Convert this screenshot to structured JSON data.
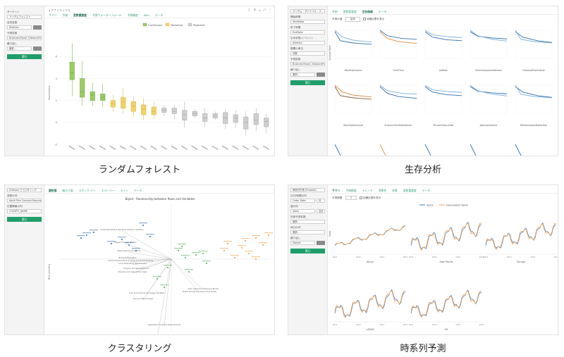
{
  "random_forest": {
    "sidebar": {
      "target_label": "ターゲット",
      "target_value": "ランダムフォレスト",
      "target_var_label": "目的変数",
      "target_var_value": "Attrition",
      "predictor_label": "予測変数",
      "predictor_value": "BusinessTravel, DistanceFr...",
      "subtract_label": "繰り返し",
      "subtract_value": "選択...",
      "run_label": "実行"
    },
    "crumb": "◂ アナリティクス",
    "tabs": [
      "サマリ",
      "予測",
      "変数重要度",
      "予測ウォーターフォール",
      "予測精度",
      "Wiki",
      "データ"
    ],
    "legend": [
      "Confirmed",
      "Tentative",
      "Rejected"
    ],
    "colors": {
      "confirmed": "#9ccc65",
      "tentative": "#f0d36a",
      "rejected": "#cfcfcf"
    },
    "chart_data": {
      "type": "box",
      "ylabel": "Importance",
      "yticks": [
        6,
        4,
        2,
        0,
        -2
      ],
      "boxes": [
        {
          "status": "Confirmed",
          "whisker": [
            2.4,
            7.2
          ],
          "q1": 3.9,
          "median": 4.5,
          "q3": 5.5
        },
        {
          "status": "Confirmed",
          "whisker": [
            1.5,
            5.6
          ],
          "q1": 2.3,
          "median": 2.8,
          "q3": 4.0
        },
        {
          "status": "Confirmed",
          "whisker": [
            1.5,
            3.6
          ],
          "q1": 2.0,
          "median": 2.5,
          "q3": 2.8
        },
        {
          "status": "Confirmed",
          "whisker": [
            1.4,
            3.5
          ],
          "q1": 2.0,
          "median": 2.3,
          "q3": 2.6
        },
        {
          "status": "Tentative",
          "whisker": [
            1.0,
            2.5
          ],
          "q1": 1.4,
          "median": 1.7,
          "q3": 2.0
        },
        {
          "status": "Tentative",
          "whisker": [
            0.8,
            3.1
          ],
          "q1": 1.3,
          "median": 1.9,
          "q3": 2.3
        },
        {
          "status": "Tentative",
          "whisker": [
            0.5,
            2.4
          ],
          "q1": 1.0,
          "median": 1.5,
          "q3": 1.9
        },
        {
          "status": "Tentative",
          "whisker": [
            0.2,
            2.2
          ],
          "q1": 0.7,
          "median": 1.2,
          "q3": 1.6
        },
        {
          "status": "Tentative",
          "whisker": [
            0.3,
            1.9
          ],
          "q1": 0.7,
          "median": 1.0,
          "q3": 1.4
        },
        {
          "status": "Rejected",
          "whisker": [
            0.6,
            1.6
          ],
          "q1": 0.9,
          "median": 1.1,
          "q3": 1.3
        },
        {
          "status": "Rejected",
          "whisker": [
            0.3,
            1.6
          ],
          "q1": 0.8,
          "median": 1.0,
          "q3": 1.3
        },
        {
          "status": "Rejected",
          "whisker": [
            -0.5,
            1.9
          ],
          "q1": 0.2,
          "median": 0.7,
          "q3": 1.1
        },
        {
          "status": "Rejected",
          "whisker": [
            0.4,
            1.2
          ],
          "q1": 0.6,
          "median": 0.8,
          "q3": 1.0
        },
        {
          "status": "Rejected",
          "whisker": [
            -0.4,
            1.3
          ],
          "q1": 0.1,
          "median": 0.4,
          "q3": 0.8
        },
        {
          "status": "Rejected",
          "whisker": [
            0.2,
            1.0
          ],
          "q1": 0.4,
          "median": 0.6,
          "q3": 0.8
        },
        {
          "status": "Rejected",
          "whisker": [
            -0.6,
            1.2
          ],
          "q1": -0.1,
          "median": 0.4,
          "q3": 0.9
        },
        {
          "status": "Rejected",
          "whisker": [
            -0.5,
            1.1
          ],
          "q1": 0.0,
          "median": 0.4,
          "q3": 0.7
        },
        {
          "status": "Rejected",
          "whisker": [
            -1.2,
            1.0
          ],
          "q1": -0.6,
          "median": 0.0,
          "q3": 0.5
        },
        {
          "status": "Rejected",
          "whisker": [
            -0.8,
            1.3
          ],
          "q1": -0.2,
          "median": 0.2,
          "q3": 0.8
        },
        {
          "status": "Rejected",
          "whisker": [
            -1.0,
            0.8
          ],
          "q1": -0.4,
          "median": 0.1,
          "q3": 0.4
        }
      ]
    }
  },
  "survival": {
    "sidebar": {
      "target_label": "ランダム・サバイバル・フ...",
      "time_label": "開始時間",
      "time_value": "StartDate",
      "end_label": "終了時間",
      "end_value": "EndDate",
      "status_label": "生存状態(イベント)",
      "status_value": "Attrition",
      "unit_label": "期間の単位",
      "unit_value": "月数",
      "predictor_label": "予測変数",
      "predictor_value": "BusinessTravel, DistanceFr...",
      "subtract_label": "繰り返し",
      "subtract_value": "選択...",
      "run_label": "実行"
    },
    "tabs": [
      "予測",
      "変数重要度",
      "生存曲線",
      "データ"
    ],
    "filter_label": "予測の値",
    "filter_value": "全体",
    "ci_label": "信頼区間を表示",
    "ylabel": "Survival Rate",
    "small_multiples": [
      "MonthlyIncome",
      "OverTime",
      "JobRole",
      "NumCompaniesWorked",
      "DistanceFromHome",
      "StockOptionLevel",
      "EnvironmentSatisfaction",
      "PercentSalaryHike",
      "JobInvolvement",
      "RelationshipSatisfaction"
    ]
  },
  "clustering": {
    "sidebar": {
      "target_label": "K-Means クラスタリング",
      "vars_label": "変数の列",
      "vars_value": "Adult Film Conduct Require...",
      "group_label": "位置情報の列",
      "group_value": "COUNTY_NAME",
      "run_label": "実行"
    },
    "tabs": [
      "要約値",
      "箱ひげ図",
      "スタック バー",
      "エラーバー",
      "ライン",
      "データ"
    ],
    "title": "Biplot - Relationship between Rows and Variables",
    "ylabel": "PC2 (15.6%)",
    "colors": {
      "cluster1": "#2b6cb0",
      "cluster2": "#4caf50",
      "cluster3": "#f39c3d"
    },
    "labels": [
      "Corporate Political Spending Advisory Question",
      "Repeal of Death Penalty",
      "State Preschool Programs",
      "Bilingual Education",
      "Local Taxes Bond Requirement",
      "Property Tax Reassessment",
      "K-12 and Community College Facilities",
      "Carryout Bag Charges",
      "Death Penalty Procedure Time Limits",
      "Voter Approval of Revenue Bonds",
      "Legislative Procedure Requirements",
      "Adult Film Condom Requirements",
      "Firearms and Ammunition Sales",
      "Criminal Sentences & Juvenile Crime Proceedings"
    ]
  },
  "timeseries": {
    "sidebar": {
      "target_label": "時系列予測 (Prophet)",
      "date_label": "日付/時間の列",
      "date_value": "Order Date",
      "date_unit": "月",
      "value_label": "値の列",
      "value_value": "Sales",
      "value_agg": "合計",
      "extra_label": "外部予測変数",
      "extra_value": "選択...",
      "holiday_label": "休日の列",
      "holiday_value": "選択...",
      "subtract_label": "繰り返し",
      "subtract_value": "Market",
      "run_label": "実行"
    },
    "tabs": [
      "サマリ",
      "予測精度",
      "トレンド",
      "季節性",
      "効果",
      "変数重要度",
      "データ"
    ],
    "period_label": "予測期間",
    "period_value": "3",
    "ci_label": "信頼区間を表示",
    "legend": [
      "Sales",
      "Forecasted Value"
    ],
    "colors": {
      "actual": "#3a7bbf",
      "forecast": "#f5a55a"
    },
    "ylabel": "Sales",
    "facets": [
      "Africa",
      "Asia Pacific",
      "Europe",
      "LATAM",
      "US"
    ],
    "years": [
      "2012",
      "2013",
      "2014",
      "2015"
    ]
  },
  "captions": {
    "rf": "ランダムフォレスト",
    "surv": "生存分析",
    "clus": "クラスタリング",
    "ts": "時系列予測"
  }
}
